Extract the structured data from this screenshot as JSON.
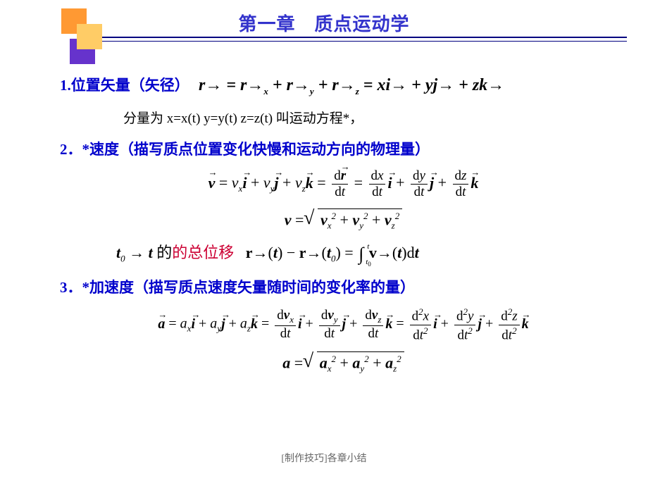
{
  "title": "第一章　质点运动学",
  "colors": {
    "heading": "#0000cc",
    "accent_red": "#cc0033",
    "rule": "#000080",
    "block_orange_dark": "#ff9933",
    "block_orange_light": "#ffcc66",
    "block_purple": "#6633cc",
    "background": "#ffffff"
  },
  "section1": {
    "label": "1.位置矢量（矢径）",
    "equation": "r = r_x + r_y + r_z = xi + yj + zk",
    "subnote": "分量为  x=x(t)  y=y(t)  z=z(t)  叫运动方程*，"
  },
  "section2": {
    "label": "2．*速度（描写质点位置变化快慢和运动方向的物理量）",
    "eq1": "v = v_x i + v_y j + v_z k = dr/dt = dx/dt i + dy/dt j + dz/dt k",
    "eq2": "v = sqrt(v_x^2 + v_y^2 + v_z^2)",
    "eq3_prefix": "t_0 → t",
    "eq3_text": "的总位移",
    "eq3": "r(t) − r(t_0) = ∫_{t_0}^{t} v(t) dt"
  },
  "section3": {
    "label": "3．*加速度（描写质点速度矢量随时间的变化率的量）",
    "eq1": "a = a_x i + a_y j + a_z k = dv_x/dt i + dv_y/dt j + dv_z/dt k = d²x/dt² i + d²y/dt² j + d²z/dt² k",
    "eq2": "a = sqrt(a_x^2 + a_y^2 + a_z^2)"
  },
  "footer": "[制作技巧]各章小结"
}
